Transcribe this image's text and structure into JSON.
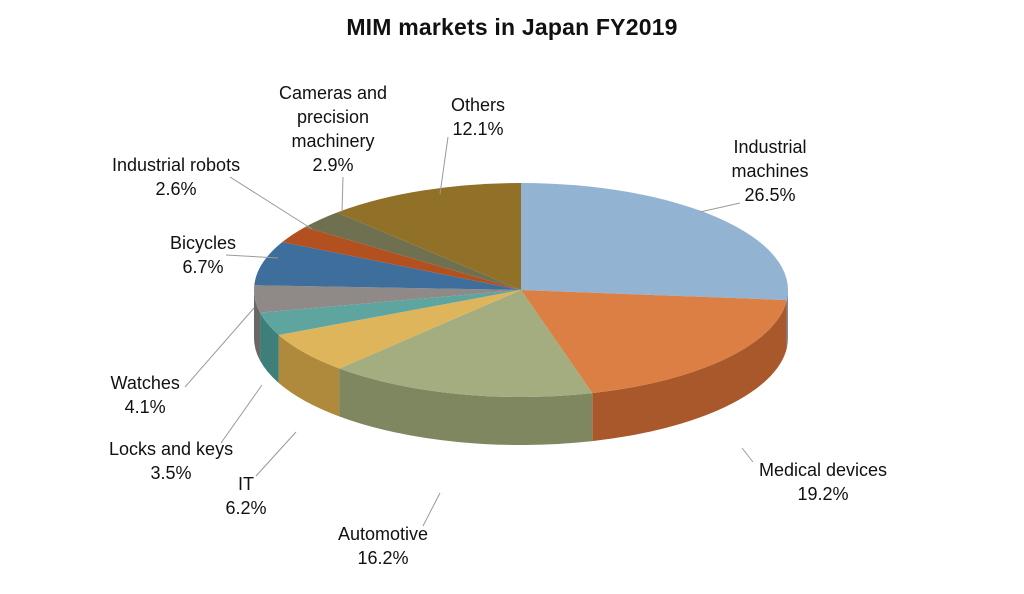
{
  "chart_data": {
    "type": "pie",
    "title": "MIM markets in Japan FY2019",
    "series": [
      {
        "name": "Industrial machines",
        "label": "Industrial\nmachines",
        "value": 26.5,
        "value_label": "26.5%",
        "color": "#93B3D2",
        "side": "#6E8DAD"
      },
      {
        "name": "Medical devices",
        "label": "Medical devices",
        "value": 19.2,
        "value_label": "19.2%",
        "color": "#DB7F45",
        "side": "#A9582B"
      },
      {
        "name": "Automotive",
        "label": "Automotive",
        "value": 16.2,
        "value_label": "16.2%",
        "color": "#A3AD80",
        "side": "#7E8760"
      },
      {
        "name": "IT",
        "label": "IT",
        "value": 6.2,
        "value_label": "6.2%",
        "color": "#DEB55B",
        "side": "#B08A3C"
      },
      {
        "name": "Locks and keys",
        "label": "Locks and keys",
        "value": 3.5,
        "value_label": "3.5%",
        "color": "#5EA5A0",
        "side": "#3F7F7A"
      },
      {
        "name": "Watches",
        "label": "Watches",
        "value": 4.1,
        "value_label": "4.1%",
        "color": "#8F8A88",
        "side": "#6B6765"
      },
      {
        "name": "Bicycles",
        "label": "Bicycles",
        "value": 6.7,
        "value_label": "6.7%",
        "color": "#3E6E9C",
        "side": "#2B5178"
      },
      {
        "name": "Industrial robots",
        "label": "Industrial robots",
        "value": 2.6,
        "value_label": "2.6%",
        "color": "#B3501F",
        "side": "#843814"
      },
      {
        "name": "Cameras and precision machinery",
        "label": "Cameras and\nprecision\nmachinery",
        "value": 2.9,
        "value_label": "2.9%",
        "color": "#6E7050",
        "side": "#515338"
      },
      {
        "name": "Others",
        "label": "Others",
        "value": 12.1,
        "value_label": "12.1%",
        "color": "#917028",
        "side": "#6B511B"
      }
    ]
  }
}
